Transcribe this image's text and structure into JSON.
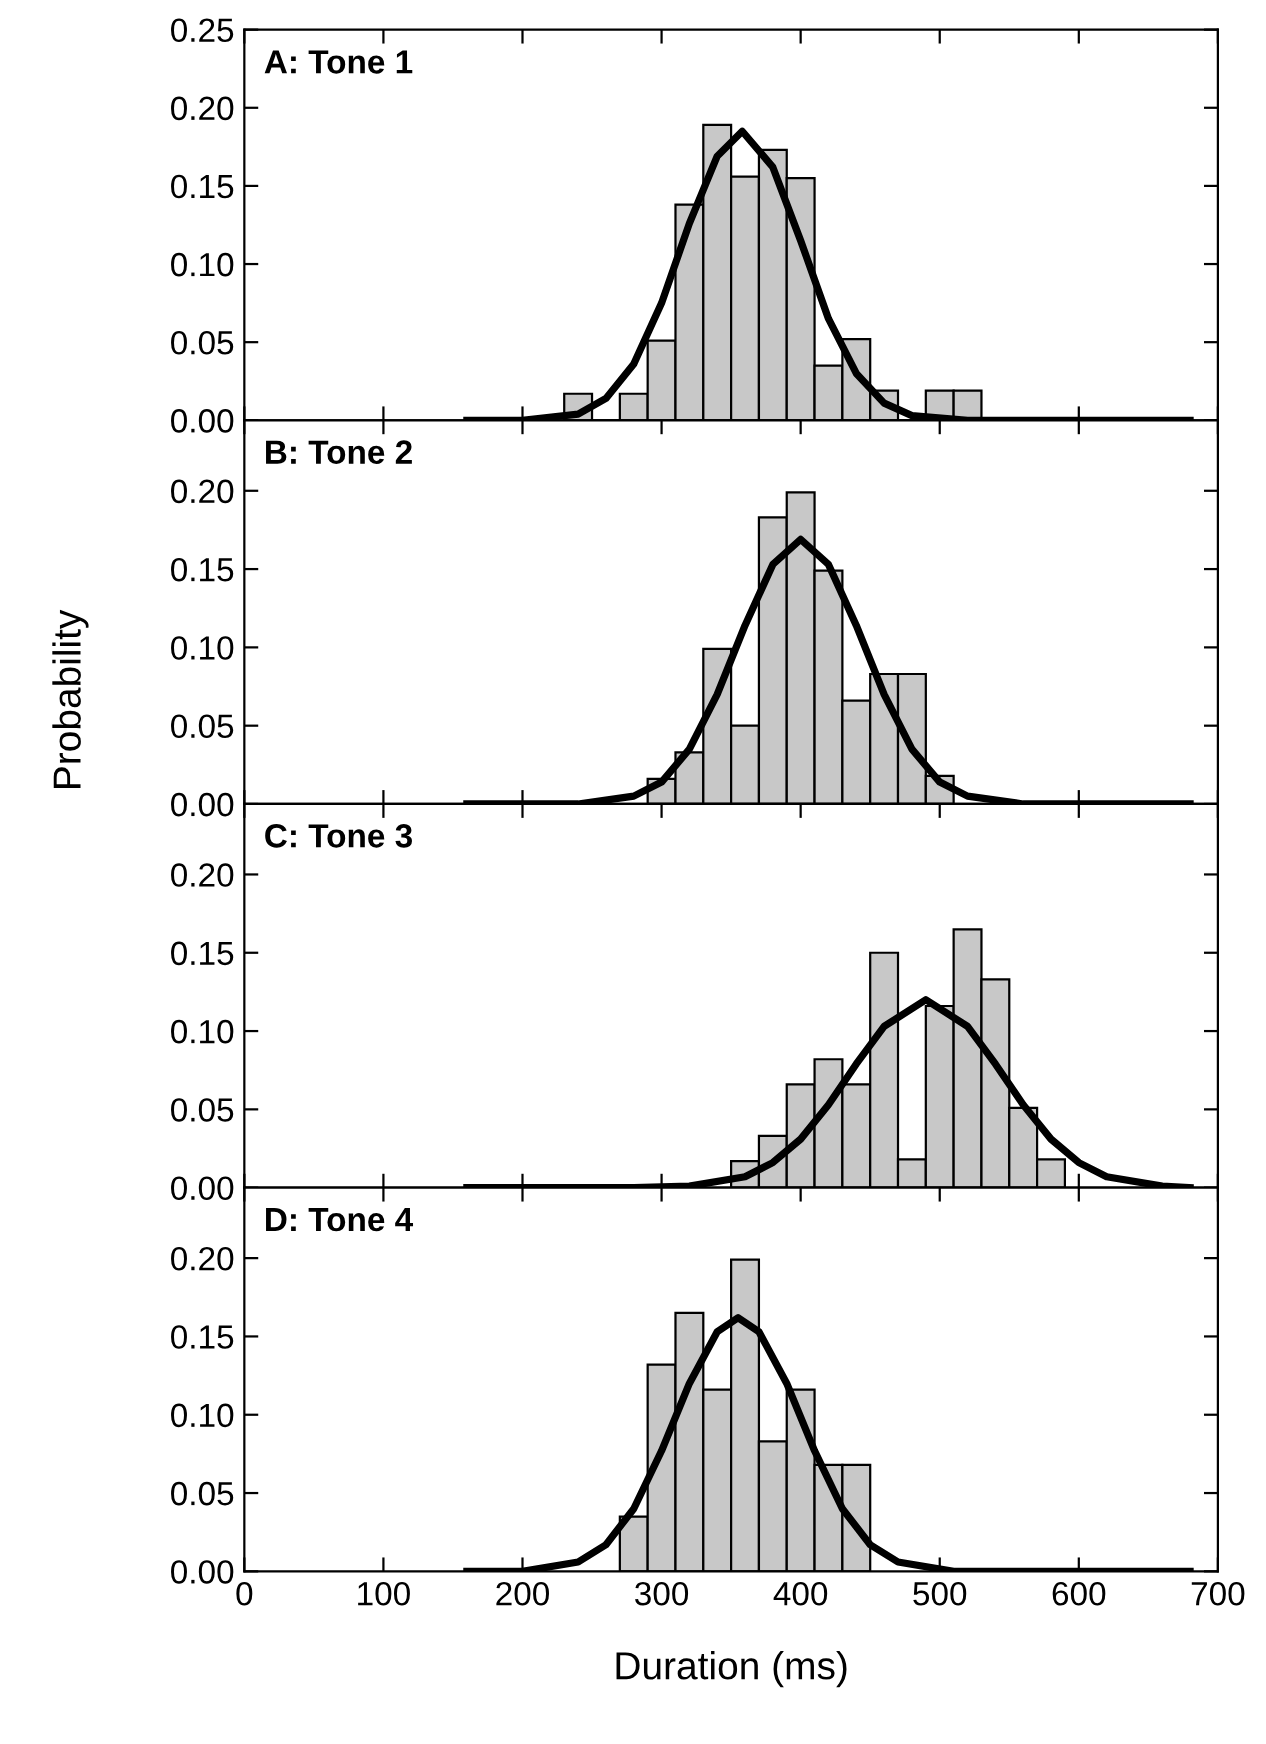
{
  "chart_data": [
    {
      "type": "histogram",
      "title": "A: Tone 1",
      "xlim": [
        0,
        700
      ],
      "xticks": [
        0,
        100,
        200,
        300,
        400,
        500,
        600,
        700
      ],
      "ylim": [
        0,
        0.25
      ],
      "yticks": [
        {
          "value": 0,
          "label": "0.00"
        },
        0.05,
        {
          "value": 0.1,
          "label": "0.10"
        },
        0.15,
        {
          "value": 0.2,
          "label": "0.20"
        },
        0.25
      ],
      "tick_labels": "y",
      "grid": false,
      "legend": false,
      "series": [
        {
          "color": "#c8c8c8",
          "bins": [
            230,
            250,
            270,
            290,
            310,
            330,
            350,
            370,
            390,
            410,
            430,
            450,
            470,
            490,
            510,
            530
          ],
          "values": [
            0.017,
            0,
            0.017,
            0.051,
            0.138,
            0.189,
            0.156,
            0.173,
            0.155,
            0.035,
            0.052,
            0.019,
            0,
            0.019,
            0.019
          ]
        },
        {
          "type": "line",
          "color": "#000000",
          "x": [
            160,
            200,
            240,
            260,
            280,
            300,
            320,
            340,
            358,
            380,
            400,
            420,
            440,
            460,
            480,
            520,
            560,
            680
          ],
          "values": [
            0,
            0,
            0.004,
            0.014,
            0.036,
            0.075,
            0.126,
            0.169,
            0.185,
            0.162,
            0.115,
            0.065,
            0.03,
            0.011,
            0.003,
            0,
            0,
            0
          ]
        }
      ]
    },
    {
      "type": "histogram",
      "title": "B: Tone 2",
      "ylabel": "Probability",
      "xlim": [
        0,
        700
      ],
      "xticks": [
        0,
        100,
        200,
        300,
        400,
        500,
        600,
        700
      ],
      "ylim": [
        0,
        0.245
      ],
      "yticks": [
        {
          "value": 0,
          "label": "0.00"
        },
        0.05,
        {
          "value": 0.1,
          "label": "0.10"
        },
        0.15,
        {
          "value": 0.2,
          "label": "0.20"
        }
      ],
      "tick_labels": "y",
      "grid": false,
      "legend": false,
      "series": [
        {
          "color": "#c8c8c8",
          "bins": [
            290,
            310,
            330,
            350,
            370,
            390,
            410,
            430,
            450,
            470,
            490,
            510
          ],
          "values": [
            0.016,
            0.033,
            0.099,
            0.05,
            0.183,
            0.199,
            0.149,
            0.066,
            0.083,
            0.083,
            0.018
          ]
        },
        {
          "type": "line",
          "color": "#000000",
          "x": [
            160,
            240,
            280,
            300,
            320,
            340,
            360,
            380,
            400,
            420,
            440,
            460,
            480,
            500,
            520,
            560,
            680
          ],
          "values": [
            0,
            0,
            0.005,
            0.014,
            0.035,
            0.07,
            0.114,
            0.153,
            0.169,
            0.153,
            0.114,
            0.07,
            0.035,
            0.014,
            0.005,
            0,
            0
          ]
        }
      ]
    },
    {
      "type": "histogram",
      "title": "C: Tone 3",
      "xlim": [
        0,
        700
      ],
      "xticks": [
        0,
        100,
        200,
        300,
        400,
        500,
        600,
        700
      ],
      "ylim": [
        0,
        0.245
      ],
      "yticks": [
        {
          "value": 0,
          "label": "0.00"
        },
        0.05,
        {
          "value": 0.1,
          "label": "0.10"
        },
        0.15,
        {
          "value": 0.2,
          "label": "0.20"
        }
      ],
      "tick_labels": "y",
      "grid": false,
      "legend": false,
      "series": [
        {
          "color": "#c8c8c8",
          "bins": [
            350,
            370,
            390,
            410,
            430,
            450,
            470,
            490,
            510,
            530,
            550,
            570,
            590
          ],
          "values": [
            0.017,
            0.033,
            0.066,
            0.082,
            0.066,
            0.15,
            0.018,
            0.116,
            0.165,
            0.133,
            0.051,
            0.018
          ]
        },
        {
          "type": "line",
          "color": "#000000",
          "x": [
            160,
            280,
            320,
            360,
            380,
            400,
            420,
            440,
            460,
            490,
            520,
            540,
            560,
            580,
            600,
            620,
            660,
            680
          ],
          "values": [
            0,
            0,
            0.001,
            0.007,
            0.016,
            0.031,
            0.053,
            0.079,
            0.103,
            0.12,
            0.103,
            0.079,
            0.053,
            0.031,
            0.016,
            0.007,
            0.001,
            0
          ]
        }
      ]
    },
    {
      "type": "histogram",
      "title": "D: Tone 4",
      "xlabel": "Duration (ms)",
      "xlim": [
        0,
        700
      ],
      "xticks": [
        0,
        100,
        200,
        300,
        400,
        500,
        600,
        700
      ],
      "ylim": [
        0,
        0.245
      ],
      "yticks": [
        {
          "value": 0,
          "label": "0.00"
        },
        0.05,
        {
          "value": 0.1,
          "label": "0.10"
        },
        0.15,
        {
          "value": 0.2,
          "label": "0.20"
        }
      ],
      "grid": false,
      "legend": false,
      "series": [
        {
          "color": "#c8c8c8",
          "bins": [
            270,
            290,
            310,
            330,
            350,
            370,
            390,
            410,
            430,
            450
          ],
          "values": [
            0.035,
            0.132,
            0.165,
            0.116,
            0.199,
            0.083,
            0.116,
            0.068,
            0.068
          ]
        },
        {
          "type": "line",
          "color": "#000000",
          "x": [
            160,
            200,
            240,
            260,
            280,
            300,
            320,
            340,
            355,
            370,
            390,
            410,
            430,
            450,
            470,
            510,
            680
          ],
          "values": [
            0,
            0,
            0.006,
            0.017,
            0.04,
            0.077,
            0.12,
            0.153,
            0.162,
            0.153,
            0.12,
            0.077,
            0.04,
            0.017,
            0.006,
            0,
            0
          ]
        }
      ]
    }
  ]
}
